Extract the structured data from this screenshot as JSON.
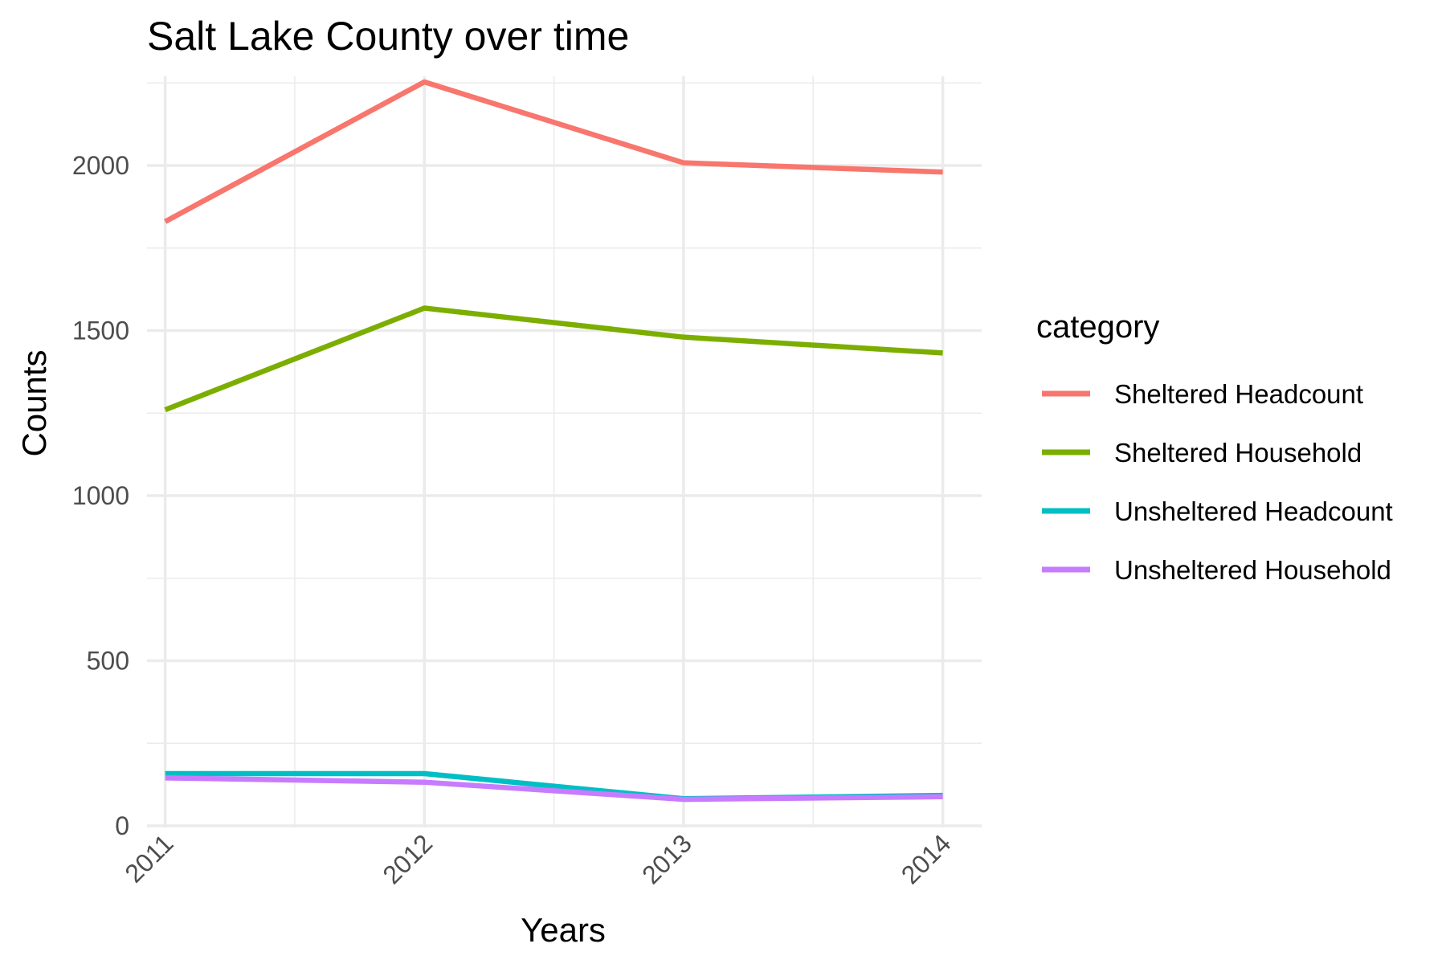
{
  "chart_data": {
    "type": "line",
    "title": "Salt Lake County over time",
    "xlabel": "Years",
    "ylabel": "Counts",
    "x": [
      2011,
      2012,
      2013,
      2014
    ],
    "x_tick_labels": [
      "2011",
      "2012",
      "2013",
      "2014"
    ],
    "y_ticks": [
      0,
      500,
      1000,
      1500,
      2000
    ],
    "y_tick_labels": [
      "0",
      "500",
      "1000",
      "1500",
      "2000"
    ],
    "xlim": [
      2010.93,
      2014.15
    ],
    "ylim": [
      -5,
      2270
    ],
    "grid": true,
    "legend": {
      "title": "category",
      "position": "right"
    },
    "series": [
      {
        "name": "Sheltered Headcount",
        "color": "#F8766D",
        "values": [
          1830,
          2253,
          2008,
          1980
        ]
      },
      {
        "name": "Sheltered Household",
        "color": "#7CAE00",
        "values": [
          1260,
          1568,
          1480,
          1432
        ]
      },
      {
        "name": "Unsheltered Headcount",
        "color": "#00BFC4",
        "values": [
          158,
          158,
          82,
          92
        ]
      },
      {
        "name": "Unsheltered Household",
        "color": "#C77CFF",
        "values": [
          145,
          132,
          80,
          88
        ]
      }
    ]
  }
}
